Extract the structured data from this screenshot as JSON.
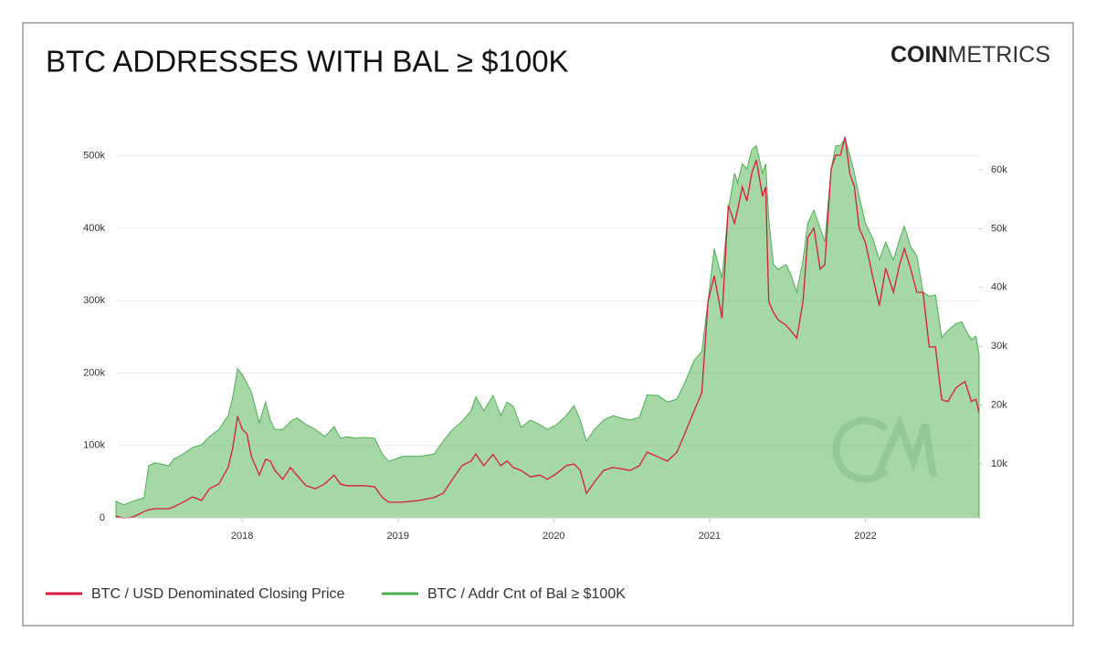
{
  "logo": {
    "bold": "COIN",
    "light": "METRICS"
  },
  "chart_data": {
    "type": "area-line",
    "title": "BTC ADDRESSES WITH BAL ≥ $100K",
    "x": [
      2017.19,
      2017.24,
      2017.3,
      2017.37,
      2017.4,
      2017.44,
      2017.53,
      2017.56,
      2017.62,
      2017.68,
      2017.74,
      2017.79,
      2017.85,
      2017.91,
      2017.94,
      2017.97,
      2018.0,
      2018.03,
      2018.06,
      2018.11,
      2018.15,
      2018.18,
      2018.21,
      2018.26,
      2018.31,
      2018.35,
      2018.41,
      2018.47,
      2018.53,
      2018.59,
      2018.63,
      2018.67,
      2018.73,
      2018.79,
      2018.85,
      2018.9,
      2018.94,
      2019.03,
      2019.14,
      2019.23,
      2019.29,
      2019.35,
      2019.41,
      2019.47,
      2019.5,
      2019.55,
      2019.61,
      2019.66,
      2019.7,
      2019.74,
      2019.79,
      2019.85,
      2019.91,
      2019.96,
      2020.02,
      2020.08,
      2020.13,
      2020.17,
      2020.21,
      2020.26,
      2020.32,
      2020.38,
      2020.43,
      2020.49,
      2020.55,
      2020.6,
      2020.67,
      2020.73,
      2020.79,
      2020.84,
      2020.9,
      2020.95,
      2020.99,
      2021.03,
      2021.08,
      2021.12,
      2021.16,
      2021.18,
      2021.21,
      2021.24,
      2021.27,
      2021.3,
      2021.34,
      2021.36,
      2021.38,
      2021.41,
      2021.44,
      2021.49,
      2021.52,
      2021.56,
      2021.6,
      2021.63,
      2021.67,
      2021.71,
      2021.74,
      2021.78,
      2021.81,
      2021.84,
      2021.87,
      2021.9,
      2021.93,
      2021.96,
      2022.0,
      2022.05,
      2022.09,
      2022.13,
      2022.18,
      2022.22,
      2022.25,
      2022.29,
      2022.33,
      2022.37,
      2022.41,
      2022.45,
      2022.49,
      2022.53,
      2022.58,
      2022.62,
      2022.64,
      2022.68,
      2022.71,
      2022.73
    ],
    "xlim": [
      2017.19,
      2022.73
    ],
    "xticks": [
      2018,
      2019,
      2020,
      2021,
      2022
    ],
    "ylim": [
      0,
      540000
    ],
    "yticks": [
      0,
      {
        "value": 100000,
        "label": "100k"
      },
      {
        "value": 200000,
        "label": "200k"
      },
      {
        "value": 300000,
        "label": "300k"
      },
      {
        "value": 400000,
        "label": "400k"
      },
      {
        "value": 500000,
        "label": "500k"
      }
    ],
    "y2lim": [
      840,
      67300
    ],
    "y2ticks": [
      {
        "value": 10000,
        "label": "10k"
      },
      {
        "value": 20000,
        "label": "20k"
      },
      {
        "value": 30000,
        "label": "30k"
      },
      {
        "value": 40000,
        "label": "40k"
      },
      {
        "value": 50000,
        "label": "50k"
      },
      {
        "value": 60000,
        "label": "60k"
      }
    ],
    "grid": true,
    "series": [
      {
        "name": "BTC / USD Denominated Closing Price",
        "color": "#d81b3c",
        "axis": "y2",
        "kind": "line",
        "values": [
          1100,
          800,
          1000,
          1900,
          2200,
          2400,
          2400,
          2700,
          3500,
          4400,
          3800,
          5800,
          6600,
          9400,
          12800,
          18100,
          15900,
          15100,
          11200,
          8100,
          10800,
          10500,
          8900,
          7400,
          9400,
          8100,
          6300,
          5800,
          6600,
          8100,
          6600,
          6300,
          6300,
          6300,
          6100,
          4300,
          3500,
          3500,
          3800,
          4300,
          5000,
          7400,
          9700,
          10500,
          11700,
          9700,
          11600,
          9700,
          10500,
          9400,
          8900,
          7800,
          8100,
          7400,
          8400,
          9700,
          10000,
          8900,
          5000,
          6900,
          8900,
          9400,
          9200,
          8900,
          9700,
          12000,
          11200,
          10500,
          12000,
          15100,
          19000,
          22100,
          37600,
          42000,
          34800,
          54000,
          50900,
          53200,
          57100,
          54700,
          59400,
          61700,
          55500,
          57100,
          37600,
          35800,
          34500,
          33600,
          32700,
          31400,
          37600,
          48500,
          50100,
          43100,
          43900,
          60200,
          62500,
          62500,
          65600,
          59400,
          57100,
          50100,
          47700,
          41500,
          36900,
          43300,
          39200,
          43900,
          46600,
          43300,
          39200,
          39200,
          29900,
          29900,
          20900,
          20600,
          22900,
          23700,
          24000,
          20600,
          21000,
          18700
        ]
      },
      {
        "name": "BTC / Addr Cnt of Bal ≥ $100K",
        "color": "#4caf50",
        "kind": "area",
        "values": [
          23000,
          18000,
          23000,
          28000,
          72000,
          76000,
          72000,
          81000,
          88000,
          97000,
          101000,
          112000,
          122000,
          141000,
          167000,
          206000,
          198000,
          186000,
          173000,
          131000,
          160000,
          135000,
          122000,
          122000,
          133000,
          138000,
          129000,
          122000,
          112000,
          126000,
          110000,
          112000,
          110000,
          111000,
          110000,
          88000,
          78000,
          85000,
          85000,
          88000,
          106000,
          122000,
          133000,
          148000,
          167000,
          148000,
          169000,
          141000,
          160000,
          154000,
          125000,
          135000,
          129000,
          122000,
          129000,
          141000,
          155000,
          135000,
          106000,
          122000,
          135000,
          141000,
          138000,
          135000,
          139000,
          170000,
          169000,
          160000,
          164000,
          186000,
          217000,
          230000,
          299000,
          372000,
          331000,
          425000,
          476000,
          463000,
          489000,
          482000,
          508000,
          514000,
          476000,
          489000,
          413000,
          350000,
          343000,
          350000,
          337000,
          312000,
          356000,
          407000,
          425000,
          400000,
          381000,
          482000,
          514000,
          514000,
          524000,
          501000,
          476000,
          444000,
          407000,
          385000,
          356000,
          381000,
          356000,
          385000,
          403000,
          375000,
          362000,
          312000,
          306000,
          308000,
          249000,
          259000,
          268000,
          271000,
          261000,
          246000,
          251000,
          225000
        ]
      }
    ]
  }
}
